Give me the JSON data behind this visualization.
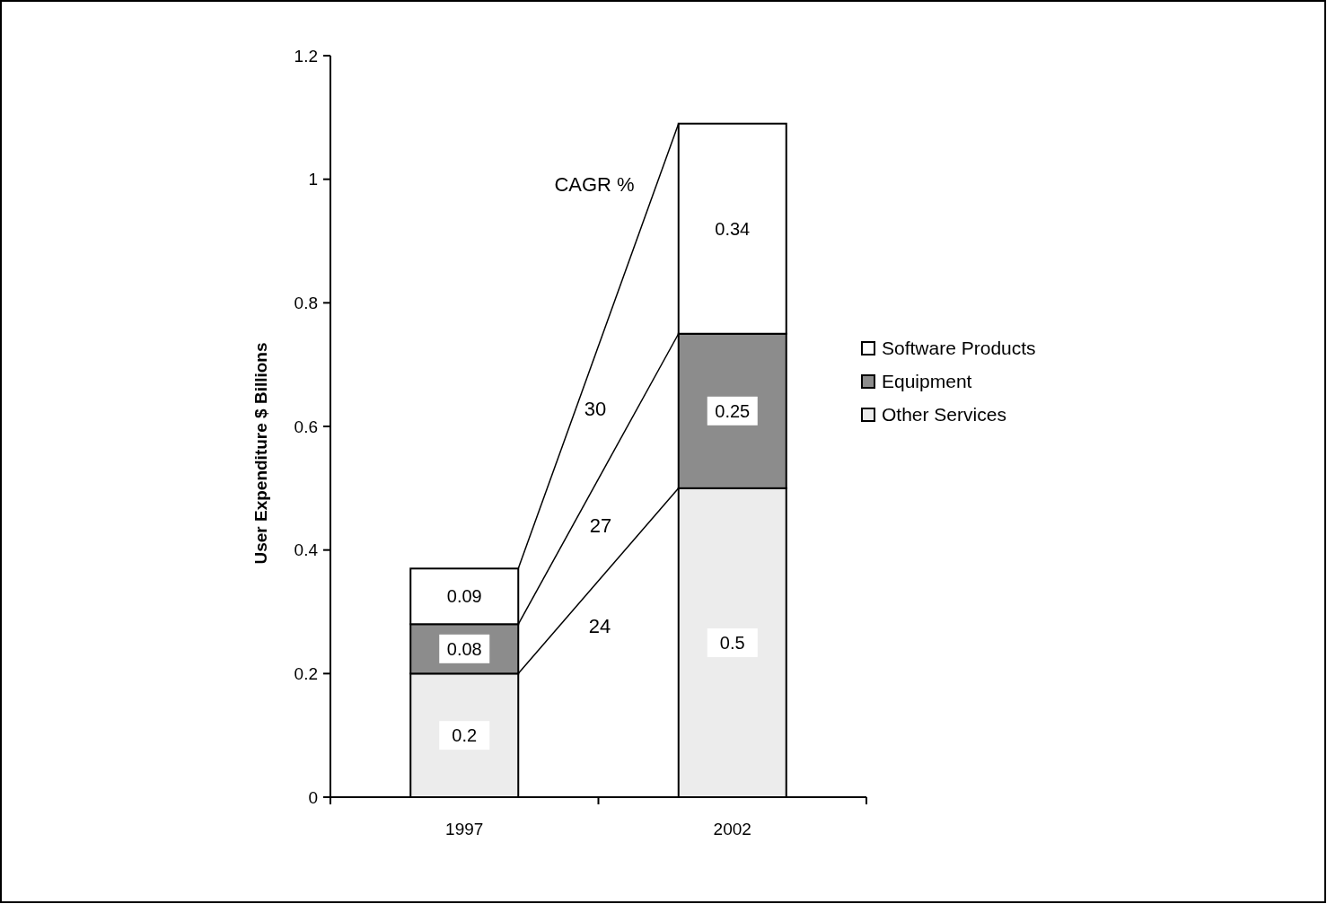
{
  "chart_data": {
    "type": "bar",
    "stacked": true,
    "categories": [
      "1997",
      "2002"
    ],
    "series": [
      {
        "name": "Other Services",
        "color": "#ececec",
        "values": [
          0.2,
          0.5
        ]
      },
      {
        "name": "Equipment",
        "color": "#8c8c8c",
        "values": [
          0.08,
          0.25
        ]
      },
      {
        "name": "Software Products",
        "color": "#ffffff",
        "values": [
          0.09,
          0.34
        ]
      }
    ],
    "ylabel": "User Expenditure $ Billions",
    "ylim": [
      0,
      1.2
    ],
    "yticks": [
      0,
      0.2,
      0.4,
      0.6,
      0.8,
      1,
      1.2
    ],
    "data_labels": true,
    "legend": "right",
    "grid": false,
    "annotations": [
      "CAGR %",
      "30",
      "27",
      "24"
    ]
  }
}
